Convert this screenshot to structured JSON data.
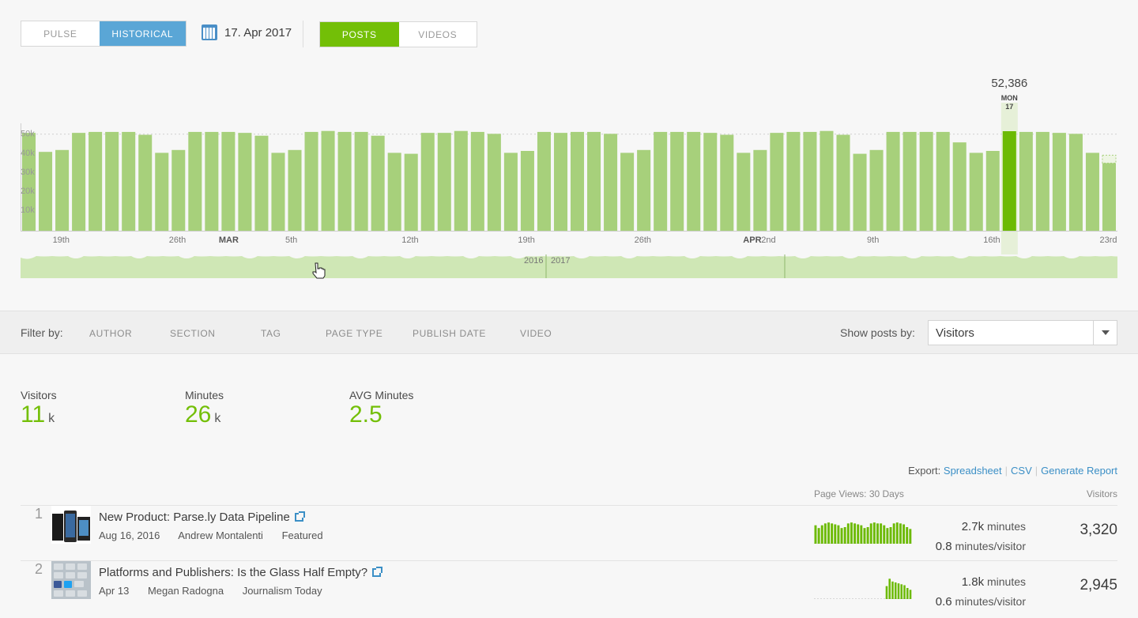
{
  "toolbar": {
    "pulse_label": "PULSE",
    "historical_label": "HISTORICAL",
    "date": "17. Apr 2017",
    "posts_label": "POSTS",
    "videos_label": "VIDEOS"
  },
  "colors": {
    "bar": "#a7d07b",
    "bar_highlight": "#6cba04",
    "accent_blue": "#5aa6d6",
    "accent_green": "#73bf07"
  },
  "chart_data": {
    "type": "bar",
    "y_ticks": [
      "10k",
      "20k",
      "30k",
      "40k",
      "50k"
    ],
    "ylim": [
      0,
      52386
    ],
    "x_ticks": [
      {
        "label": "19th",
        "index": 2
      },
      {
        "label": "26th",
        "index": 9
      },
      {
        "label": "MAR",
        "index": 12,
        "month": true
      },
      {
        "label": "5th",
        "index": 16
      },
      {
        "label": "12th",
        "index": 23
      },
      {
        "label": "19th",
        "index": 30
      },
      {
        "label": "26th",
        "index": 37
      },
      {
        "label": "APR",
        "index": 43,
        "month": true
      },
      {
        "label": "2nd",
        "index": 44
      },
      {
        "label": "9th",
        "index": 51
      },
      {
        "label": "16th",
        "index": 58
      },
      {
        "label": "23rd",
        "index": 65
      }
    ],
    "values": [
      51500,
      41500,
      42500,
      51500,
      52000,
      52000,
      52000,
      50500,
      41000,
      42500,
      52000,
      52000,
      52000,
      51500,
      50000,
      41000,
      42500,
      52000,
      52500,
      52000,
      52000,
      50000,
      41000,
      40500,
      51500,
      51500,
      52500,
      52000,
      51000,
      41000,
      42000,
      52000,
      51500,
      52000,
      52000,
      51000,
      41000,
      42500,
      52000,
      52000,
      52000,
      51500,
      50500,
      41000,
      42500,
      51500,
      52000,
      52000,
      52500,
      50500,
      40500,
      42500,
      52000,
      52000,
      52000,
      52000,
      46500,
      41000,
      42000,
      52386,
      52000,
      52000,
      51500,
      51000,
      41000,
      36000
    ],
    "highlight": {
      "index": 59,
      "value_label": "52,386",
      "day_label": "MON",
      "day_number": "17"
    },
    "navigator": {
      "year_left": "2016",
      "year_right": "2017"
    }
  },
  "filter": {
    "label": "Filter by:",
    "items": [
      "AUTHOR",
      "SECTION",
      "TAG",
      "PAGE TYPE",
      "PUBLISH DATE",
      "VIDEO"
    ],
    "show_by_label": "Show posts by:",
    "show_by_value": "Visitors"
  },
  "metrics": [
    {
      "label": "Visitors",
      "value": "11",
      "unit": "k"
    },
    {
      "label": "Minutes",
      "value": "26",
      "unit": "k"
    },
    {
      "label": "AVG Minutes",
      "value": "2.5",
      "unit": ""
    }
  ],
  "export": {
    "label": "Export:",
    "links": [
      "Spreadsheet",
      "CSV",
      "Generate Report"
    ]
  },
  "table": {
    "col_pageviews": "Page Views: 30 Days",
    "col_visitors": "Visitors"
  },
  "posts": [
    {
      "rank": "1",
      "title": "New Product: Parse.ly Data Pipeline",
      "date": "Aug 16, 2016",
      "author": "Andrew Montalenti",
      "section": "Featured",
      "minutes": "2.7k",
      "minutes_unit": "minutes",
      "per_visitor": "0.8",
      "per_visitor_unit": "minutes/visitor",
      "visitors": "3,320",
      "spark": [
        20,
        17,
        20,
        22,
        23,
        22,
        21,
        20,
        17,
        18,
        22,
        23,
        22,
        21,
        20,
        17,
        18,
        22,
        23,
        22,
        22,
        20,
        17,
        18,
        22,
        23,
        22,
        21,
        18,
        16
      ]
    },
    {
      "rank": "2",
      "title": "Platforms and Publishers: Is the Glass Half Empty?",
      "date": "Apr 13",
      "author": "Megan Radogna",
      "section": "Journalism Today",
      "minutes": "1.8k",
      "minutes_unit": "minutes",
      "per_visitor": "0.6",
      "per_visitor_unit": "minutes/visitor",
      "visitors": "2,945",
      "spark": [
        0,
        0,
        0,
        0,
        0,
        0,
        0,
        0,
        0,
        0,
        0,
        0,
        0,
        0,
        0,
        0,
        0,
        0,
        0,
        0,
        0,
        0,
        0,
        0,
        14,
        22,
        19,
        18,
        17,
        16,
        15,
        12,
        10
      ]
    }
  ]
}
